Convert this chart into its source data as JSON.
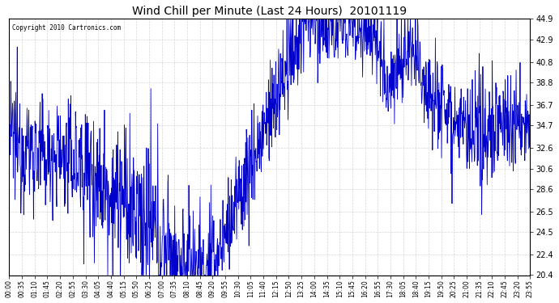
{
  "title": "Wind Chill per Minute (Last 24 Hours)  20101119",
  "copyright": "Copyright 2010 Cartronics.com",
  "line_color": "#0000cc",
  "background_color": "#ffffff",
  "grid_color": "#cccccc",
  "ylim": [
    20.4,
    44.9
  ],
  "yticks": [
    20.4,
    22.4,
    24.5,
    26.5,
    28.6,
    30.6,
    32.6,
    34.7,
    36.7,
    38.8,
    40.8,
    42.9,
    44.9
  ],
  "xtick_labels": [
    "00:00",
    "00:35",
    "01:10",
    "01:45",
    "02:20",
    "02:55",
    "03:30",
    "04:05",
    "04:40",
    "05:15",
    "05:50",
    "06:25",
    "07:00",
    "07:35",
    "08:10",
    "08:45",
    "09:20",
    "09:55",
    "10:30",
    "11:05",
    "11:40",
    "12:15",
    "12:50",
    "13:25",
    "14:00",
    "14:35",
    "15:10",
    "15:45",
    "16:20",
    "16:55",
    "17:30",
    "18:05",
    "18:40",
    "19:15",
    "19:50",
    "20:25",
    "21:00",
    "21:35",
    "22:10",
    "22:45",
    "23:20",
    "23:55"
  ],
  "num_points": 1440,
  "figsize": [
    6.9,
    3.75
  ],
  "dpi": 100
}
